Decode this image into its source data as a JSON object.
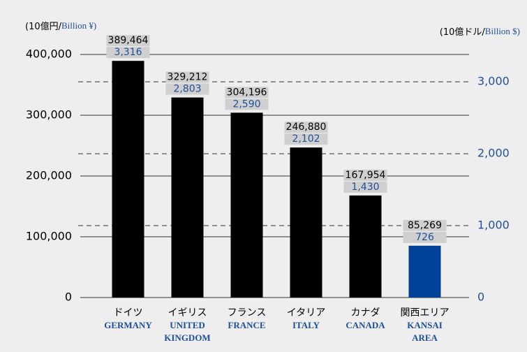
{
  "chart_data": {
    "type": "bar",
    "y_label": {
      "ja": "(10億円/",
      "en": "Billion ¥)"
    },
    "y2_label": {
      "ja": "(10億ドル/",
      "en": "Billion $)"
    },
    "categories": [
      {
        "ja": "ドイツ",
        "en": [
          "GERMANY"
        ]
      },
      {
        "ja": "イギリス",
        "en": [
          "UNITED",
          "KINGDOM"
        ]
      },
      {
        "ja": "フランス",
        "en": [
          "FRANCE"
        ]
      },
      {
        "ja": "イタリア",
        "en": [
          "ITALY"
        ]
      },
      {
        "ja": "カナダ",
        "en": [
          "CANADA"
        ]
      },
      {
        "ja": "関西エリア",
        "en": [
          "KANSAI",
          "AREA"
        ]
      }
    ],
    "series": [
      {
        "values": [
          389464,
          329212,
          304196,
          246880,
          167954,
          85269
        ],
        "value_labels": [
          "389,464",
          "329,212",
          "304,196",
          "246,880",
          "167,954",
          "85,269"
        ],
        "colors": [
          "#000000",
          "#000000",
          "#000000",
          "#000000",
          "#000000",
          "#00429a"
        ]
      },
      {
        "axis": "y2",
        "color": "#1f4f9a",
        "values": [
          3316,
          2803,
          2590,
          2102,
          1430,
          726
        ],
        "value_labels": [
          "3,316",
          "2,803",
          "2,590",
          "2,102",
          "1,430",
          "726"
        ]
      }
    ],
    "ylim": [
      0,
      400000
    ],
    "yticks": [
      0,
      {
        "value": 100000,
        "label": "100,000"
      },
      {
        "value": 200000,
        "label": "200,000"
      },
      {
        "value": 300000,
        "label": "300,000"
      },
      {
        "value": 400000,
        "label": "400,000"
      }
    ],
    "y2lim": [
      0,
      3380
    ],
    "y2ticks": [
      0,
      {
        "value": 1000,
        "label": "1,000"
      },
      {
        "value": 2000,
        "label": "2,000"
      },
      {
        "value": 3000,
        "label": "3,000"
      }
    ]
  }
}
